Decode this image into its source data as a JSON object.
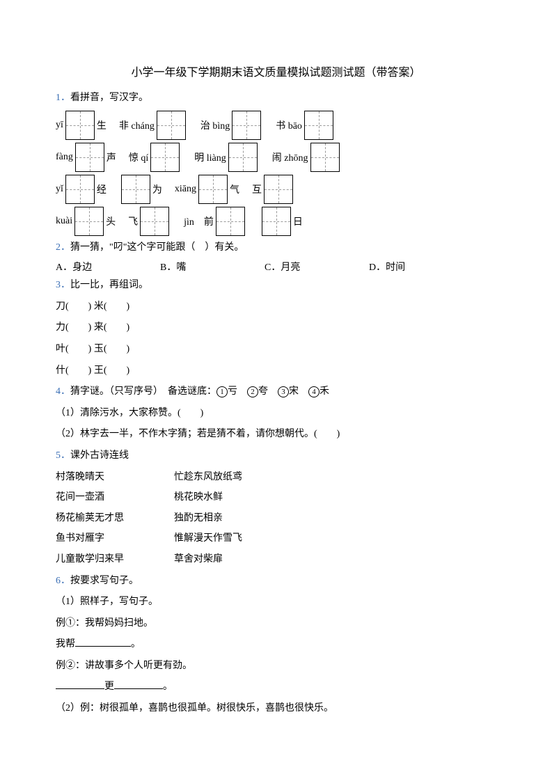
{
  "title": "小学一年级下学期期末语文质量模拟试题测试题（带答案）",
  "colors": {
    "num": "#3b6fb5",
    "text": "#000000",
    "bg": "#ffffff"
  },
  "q1": {
    "num": "1．",
    "text": "看拼音，写汉字。",
    "rows": [
      [
        {
          "pre": "yī",
          "boxes": 1,
          "post": "生"
        },
        {
          "pre": "非 cháng",
          "boxes": 1,
          "post": ""
        },
        {
          "pre": "治 bìng",
          "boxes": 1,
          "post": ""
        },
        {
          "pre": "书 bāo",
          "boxes": 1,
          "post": ""
        }
      ],
      [
        {
          "pre": "fàng",
          "boxes": 1,
          "post": "声"
        },
        {
          "pre": "惊 qí",
          "boxes": 1,
          "post": ""
        },
        {
          "pre": "明 liàng",
          "boxes": 1,
          "post": ""
        },
        {
          "pre": "闹 zhōng",
          "boxes": 1,
          "post": ""
        }
      ],
      [
        {
          "pre": "yǐ",
          "boxes": 1,
          "post": "经"
        },
        {
          "pre": "",
          "boxes": 1,
          "post": "为"
        },
        {
          "pre": "xiāng",
          "boxes": 1,
          "post": "气"
        },
        {
          "pre": "互",
          "boxes": 1,
          "post": ""
        }
      ],
      [
        {
          "pre": "kuài",
          "boxes": 1,
          "post": "头"
        },
        {
          "pre": "飞",
          "boxes": 1,
          "post": ""
        },
        {
          "pre": "jìn　前",
          "boxes": 1,
          "post": ""
        },
        {
          "pre": "",
          "boxes": 1,
          "post": "日"
        }
      ]
    ]
  },
  "q2": {
    "num": "2．",
    "text": "猜一猜，\"叼\"这个字可能跟（　）有关。",
    "opts": [
      {
        "k": "A．",
        "v": "身边"
      },
      {
        "k": "B．",
        "v": "嘴"
      },
      {
        "k": "C．",
        "v": "月亮"
      },
      {
        "k": "D．",
        "v": "时间"
      }
    ]
  },
  "q3": {
    "num": "3．",
    "text": "比一比，再组词。",
    "lines": [
      "刀(　　) 米(　　)",
      "力(　　) 来(　　)",
      "叶(　　) 玉(　　)",
      "什(　　) 王(　　)"
    ]
  },
  "q4": {
    "num": "4．",
    "text": "猜字谜。（只写序号）　备选谜底：",
    "choices": [
      "亏",
      "夸",
      "宋",
      "禾"
    ],
    "subs": [
      "（1）清除污水，大家称赞。(　　)",
      "（2）林字去一半，不作木字猜；若是猜不着，请你想朝代。(　　)"
    ]
  },
  "q5": {
    "num": "5．",
    "text": "课外古诗连线",
    "pairs": [
      [
        "村落晚晴天",
        "忙趁东风放纸鸢"
      ],
      [
        "花间一壶酒",
        "桃花映水鲜"
      ],
      [
        "杨花榆荚无才思",
        "独酌无相亲"
      ],
      [
        "鱼书对雁字",
        "惟解漫天作雪飞"
      ],
      [
        "儿童散学归来早",
        "草舍对柴扉"
      ]
    ]
  },
  "q6": {
    "num": "6．",
    "text": "按要求写句子。",
    "p1": "（1）照样子，写句子。",
    "ex1a": "例①：我帮妈妈扫地。",
    "ex1b_pre": "我帮",
    "ex1b_post": "。",
    "ex2a": "例②：讲故事多个人听更有劲。",
    "ex2b_mid": "更",
    "ex2b_post": "。",
    "p2": "（2）例：树很孤单，喜鹊也很孤单。树很快乐，喜鹊也很快乐。"
  }
}
